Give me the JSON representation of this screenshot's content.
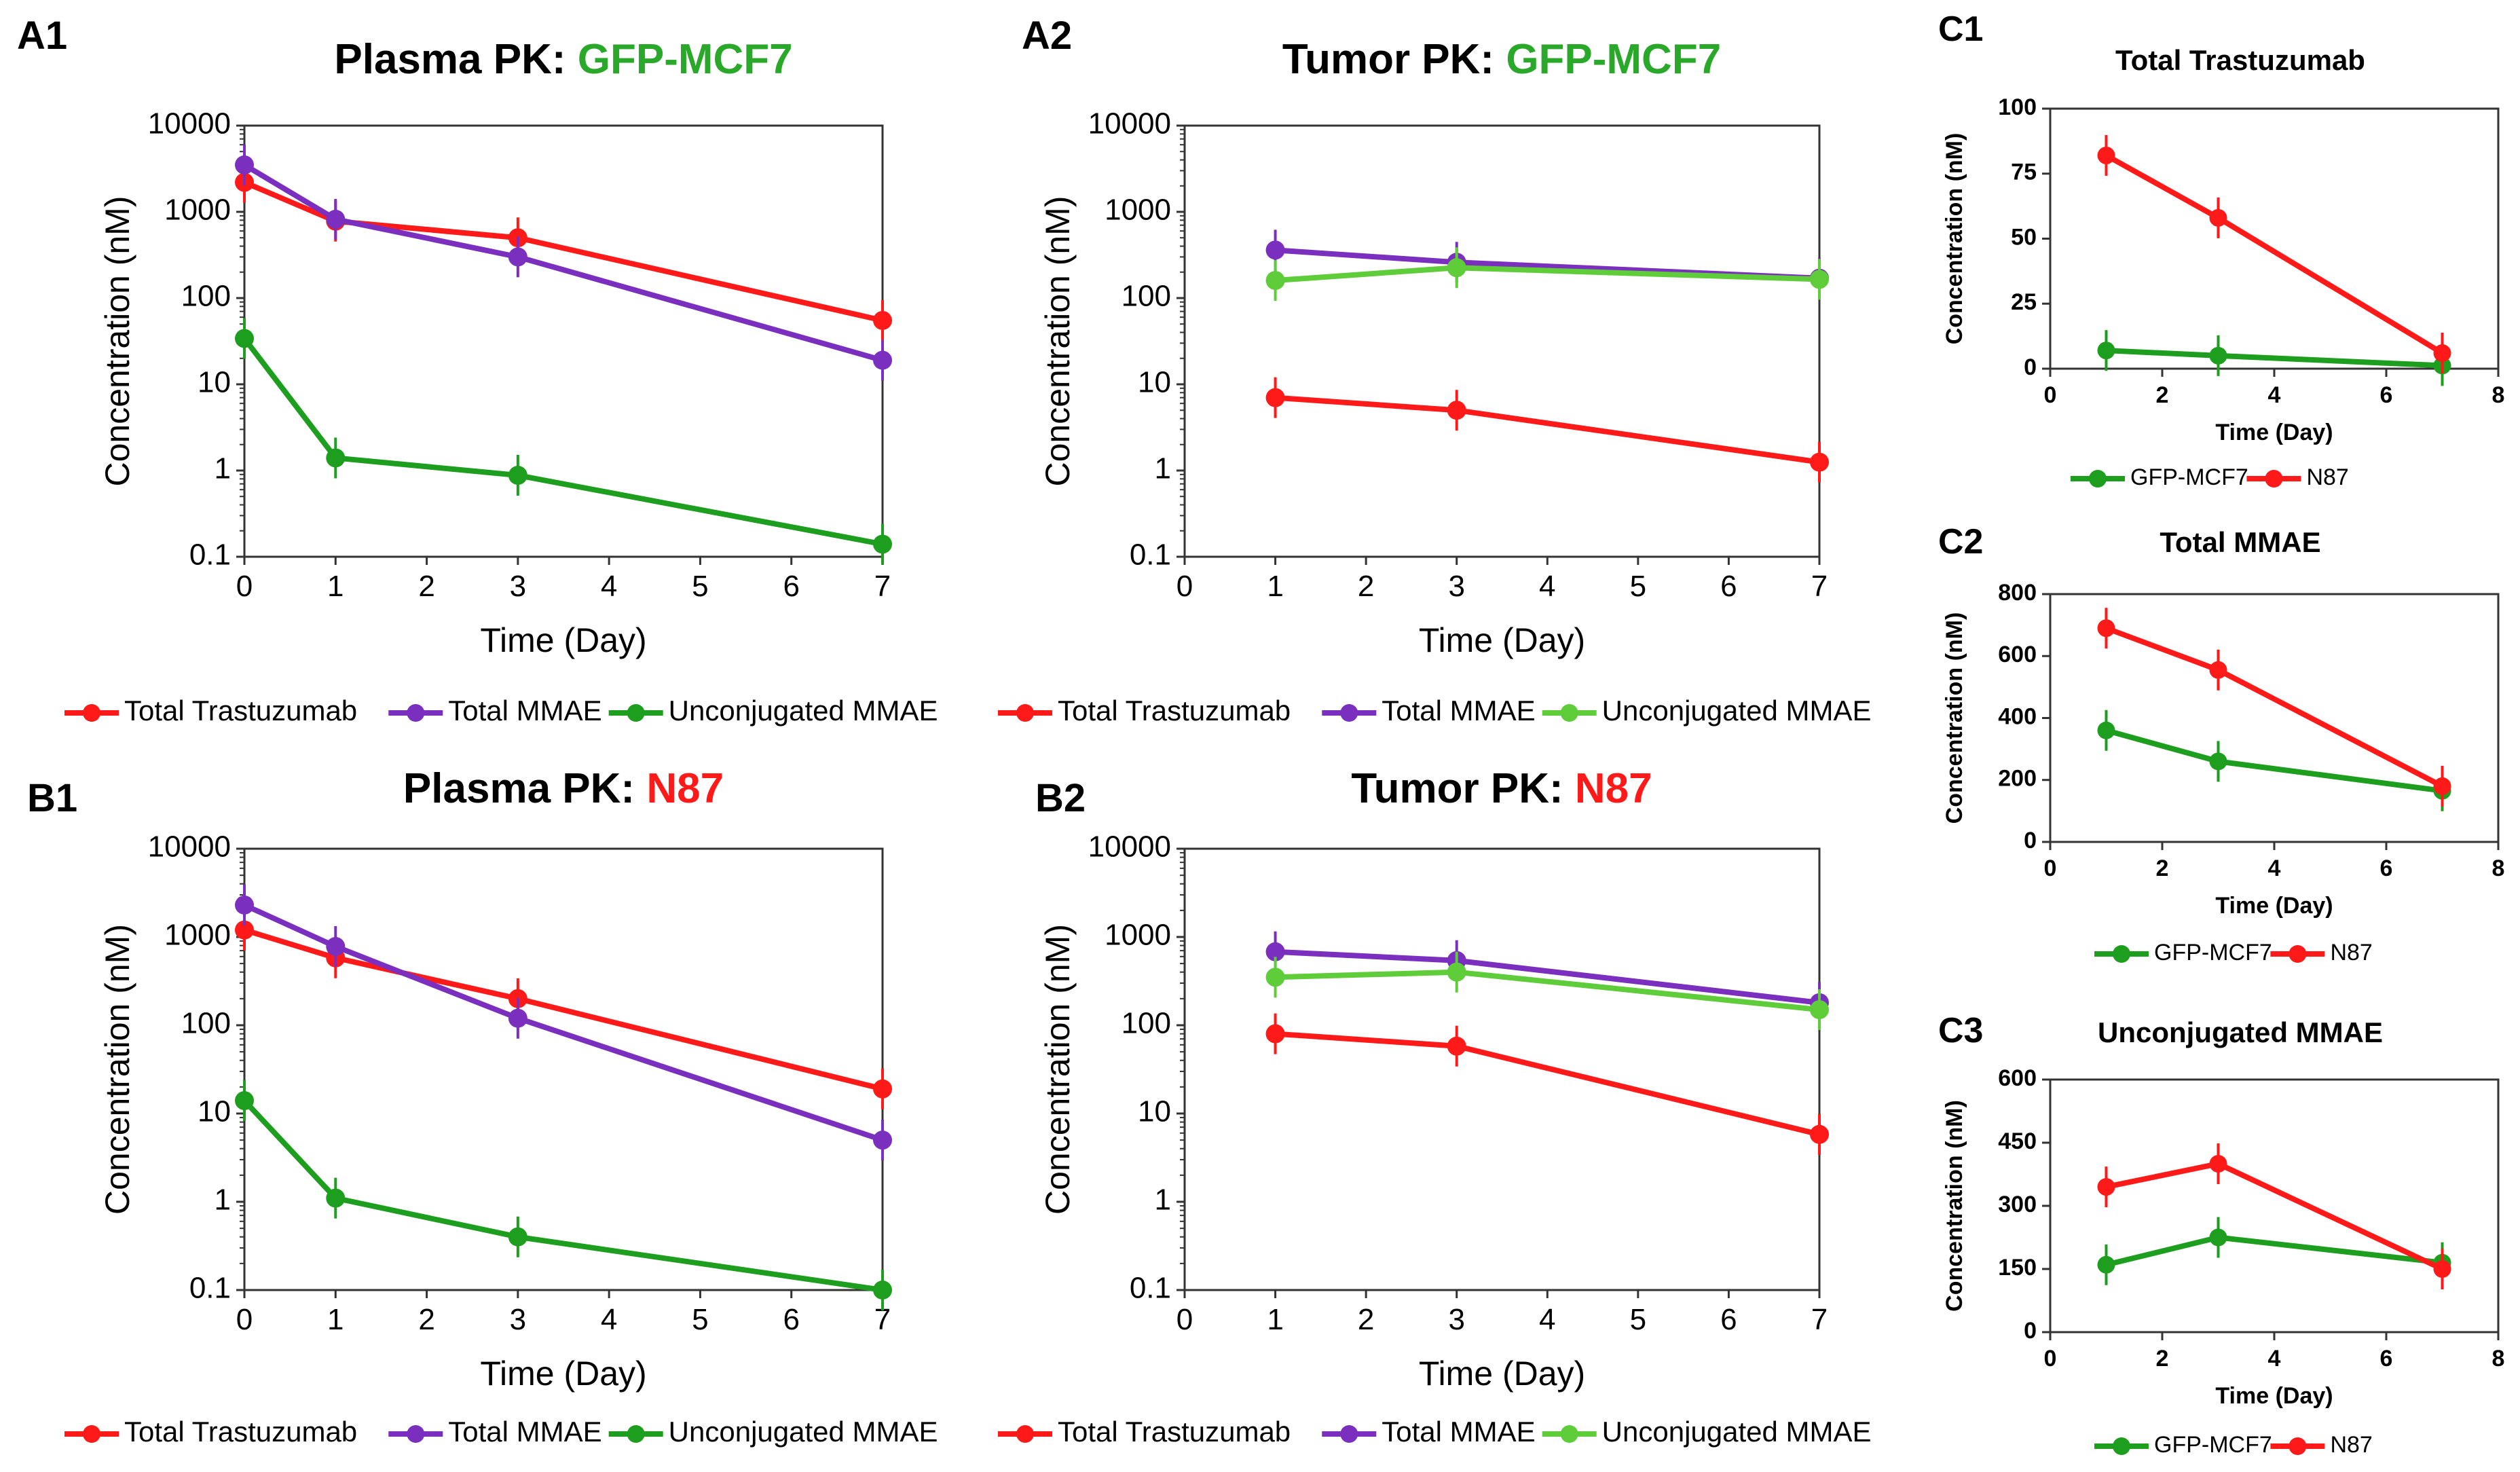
{
  "figure": {
    "panels": {
      "A1": {
        "label": "A1",
        "title_prefix": "Plasma PK: ",
        "title_highlight": "GFP-MCF7"
      },
      "A2": {
        "label": "A2",
        "title_prefix": "Tumor PK: ",
        "title_highlight": "GFP-MCF7"
      },
      "B1": {
        "label": "B1",
        "title_prefix": "Plasma PK: ",
        "title_highlight": "N87"
      },
      "B2": {
        "label": "B2",
        "title_prefix": "Tumor PK: ",
        "title_highlight": "N87"
      },
      "C1": {
        "label": "C1",
        "title": "Total Trastuzumab"
      },
      "C2": {
        "label": "C2",
        "title": "Total MMAE"
      },
      "C3": {
        "label": "C3",
        "title": "Unconjugated MMAE"
      }
    },
    "colors": {
      "red": "#ff1a1a",
      "purple": "#7b2fbe",
      "green": "#1e9e1e",
      "light_green": "#5fcc3a",
      "highlight_green": "#2aa82a",
      "highlight_red": "#ff1a1a"
    }
  },
  "chart_data": [
    {
      "id": "A1",
      "type": "line",
      "title": "Plasma PK: GFP-MCF7",
      "xlabel": "Time (Day)",
      "ylabel": "Concentration (nM)",
      "xlim": [
        0,
        7
      ],
      "yscale": "log",
      "ylim": [
        0.1,
        10000
      ],
      "xticks": [
        "0",
        "1",
        "2",
        "3",
        "4",
        "5",
        "6",
        "7"
      ],
      "yticks": [
        "0.1",
        "1",
        "10",
        "100",
        "1000",
        "10000"
      ],
      "series": [
        {
          "name": "Total Trastuzumab",
          "color": "#ff1a1a",
          "x": [
            0,
            1,
            3,
            7
          ],
          "y": [
            2200,
            780,
            500,
            55
          ]
        },
        {
          "name": "Total MMAE",
          "color": "#7b2fbe",
          "x": [
            0,
            1,
            3,
            7
          ],
          "y": [
            3500,
            820,
            300,
            19
          ]
        },
        {
          "name": "Unconjugated MMAE",
          "color": "#1e9e1e",
          "x": [
            0,
            1,
            3,
            7
          ],
          "y": [
            34,
            1.4,
            0.88,
            0.14
          ]
        }
      ]
    },
    {
      "id": "A2",
      "type": "line",
      "title": "Tumor PK: GFP-MCF7",
      "xlabel": "Time (Day)",
      "ylabel": "Concentration (nM)",
      "xlim": [
        0,
        7
      ],
      "yscale": "log",
      "ylim": [
        0.1,
        10000
      ],
      "xticks": [
        "0",
        "1",
        "2",
        "3",
        "4",
        "5",
        "6",
        "7"
      ],
      "yticks": [
        "0.1",
        "1",
        "10",
        "100",
        "1000",
        "10000"
      ],
      "series": [
        {
          "name": "Total Trastuzumab",
          "color": "#ff1a1a",
          "x": [
            1,
            3,
            7
          ],
          "y": [
            7,
            5,
            1.25
          ]
        },
        {
          "name": "Total MMAE",
          "color": "#7b2fbe",
          "x": [
            1,
            3,
            7
          ],
          "y": [
            360,
            260,
            170
          ]
        },
        {
          "name": "Unconjugated MMAE",
          "color": "#5fcc3a",
          "x": [
            1,
            3,
            7
          ],
          "y": [
            160,
            225,
            165
          ]
        }
      ]
    },
    {
      "id": "B1",
      "type": "line",
      "title": "Plasma PK: N87",
      "xlabel": "Time (Day)",
      "ylabel": "Concentration (nM)",
      "xlim": [
        0,
        7
      ],
      "yscale": "log",
      "ylim": [
        0.1,
        10000
      ],
      "xticks": [
        "0",
        "1",
        "2",
        "3",
        "4",
        "5",
        "6",
        "7"
      ],
      "yticks": [
        "0.1",
        "1",
        "10",
        "100",
        "1000",
        "10000"
      ],
      "series": [
        {
          "name": "Total Trastuzumab",
          "color": "#ff1a1a",
          "x": [
            0,
            1,
            3,
            7
          ],
          "y": [
            1200,
            580,
            200,
            19
          ]
        },
        {
          "name": "Total MMAE",
          "color": "#7b2fbe",
          "x": [
            0,
            1,
            3,
            7
          ],
          "y": [
            2300,
            780,
            120,
            5
          ]
        },
        {
          "name": "Unconjugated MMAE",
          "color": "#1e9e1e",
          "x": [
            0,
            1,
            3,
            7
          ],
          "y": [
            14,
            1.1,
            0.4,
            0.1
          ]
        }
      ]
    },
    {
      "id": "B2",
      "type": "line",
      "title": "Tumor PK: N87",
      "xlabel": "Time (Day)",
      "ylabel": "Concentration (nM)",
      "xlim": [
        0,
        7
      ],
      "yscale": "log",
      "ylim": [
        0.1,
        10000
      ],
      "xticks": [
        "0",
        "1",
        "2",
        "3",
        "4",
        "5",
        "6",
        "7"
      ],
      "yticks": [
        "0.1",
        "1",
        "10",
        "100",
        "1000",
        "10000"
      ],
      "series": [
        {
          "name": "Total Trastuzumab",
          "color": "#ff1a1a",
          "x": [
            1,
            3,
            7
          ],
          "y": [
            80,
            58,
            5.8
          ]
        },
        {
          "name": "Total MMAE",
          "color": "#7b2fbe",
          "x": [
            1,
            3,
            7
          ],
          "y": [
            680,
            540,
            180
          ]
        },
        {
          "name": "Unconjugated MMAE",
          "color": "#5fcc3a",
          "x": [
            1,
            3,
            7
          ],
          "y": [
            350,
            400,
            150
          ]
        }
      ]
    },
    {
      "id": "C1",
      "type": "line",
      "title": "Total Trastuzumab",
      "xlabel": "Time (Day)",
      "ylabel": "Concentration (nM)",
      "xlim": [
        0,
        8
      ],
      "ylim": [
        0,
        100
      ],
      "xticks": [
        "0",
        "2",
        "4",
        "6",
        "8"
      ],
      "yticks": [
        "0",
        "25",
        "50",
        "75",
        "100"
      ],
      "series": [
        {
          "name": "GFP-MCF7",
          "color": "#1e9e1e",
          "x": [
            1,
            3,
            7
          ],
          "y": [
            7,
            5,
            1.2
          ]
        },
        {
          "name": "N87",
          "color": "#ff1a1a",
          "x": [
            1,
            3,
            7
          ],
          "y": [
            82,
            58,
            6
          ]
        }
      ]
    },
    {
      "id": "C2",
      "type": "line",
      "title": "Total MMAE",
      "xlabel": "Time (Day)",
      "ylabel": "Concentration (nM)",
      "xlim": [
        0,
        8
      ],
      "ylim": [
        0,
        800
      ],
      "xticks": [
        "0",
        "2",
        "4",
        "6",
        "8"
      ],
      "yticks": [
        "0",
        "200",
        "400",
        "600",
        "800"
      ],
      "series": [
        {
          "name": "GFP-MCF7",
          "color": "#1e9e1e",
          "x": [
            1,
            3,
            7
          ],
          "y": [
            360,
            260,
            165
          ]
        },
        {
          "name": "N87",
          "color": "#ff1a1a",
          "x": [
            1,
            3,
            7
          ],
          "y": [
            690,
            555,
            180
          ]
        }
      ]
    },
    {
      "id": "C3",
      "type": "line",
      "title": "Unconjugated MMAE",
      "xlabel": "Time (Day)",
      "ylabel": "Concentration (nM)",
      "xlim": [
        0,
        8
      ],
      "ylim": [
        0,
        600
      ],
      "xticks": [
        "0",
        "2",
        "4",
        "6",
        "8"
      ],
      "yticks": [
        "0",
        "150",
        "300",
        "450",
        "600"
      ],
      "series": [
        {
          "name": "GFP-MCF7",
          "color": "#1e9e1e",
          "x": [
            1,
            3,
            7
          ],
          "y": [
            160,
            225,
            165
          ]
        },
        {
          "name": "N87",
          "color": "#ff1a1a",
          "x": [
            1,
            3,
            7
          ],
          "y": [
            345,
            400,
            150
          ]
        }
      ]
    }
  ]
}
